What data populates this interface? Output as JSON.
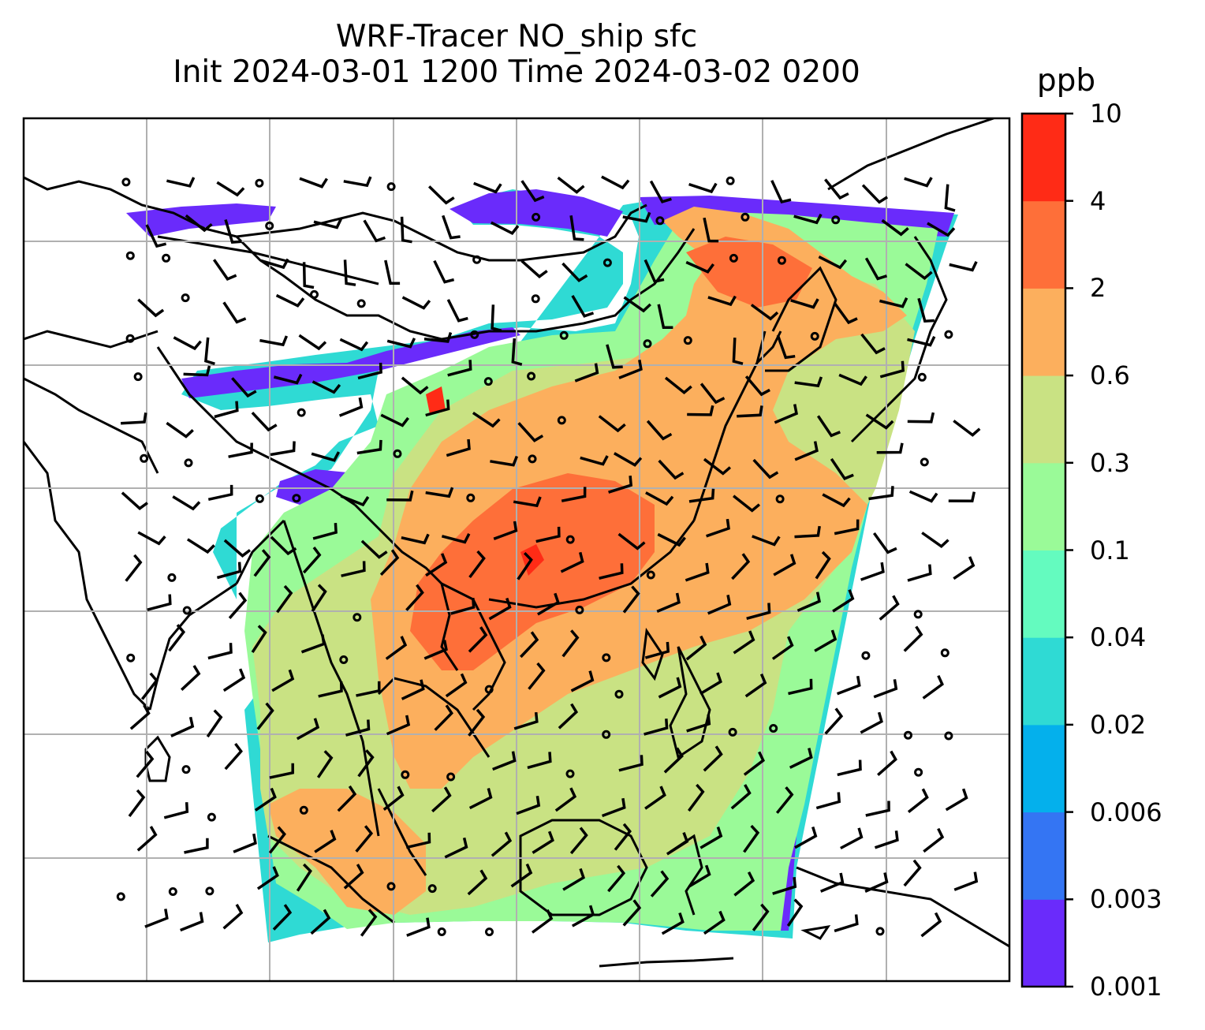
{
  "title": {
    "line1": "WRF-Tracer NO_ship sfc",
    "line2": "Init 2024-03-01 1200 Time 2024-03-02 0200"
  },
  "colorbar": {
    "unit": "ppb",
    "levels": [
      "0.001",
      "0.003",
      "0.006",
      "0.02",
      "0.04",
      "0.1",
      "0.3",
      "0.6",
      "2",
      "4",
      "10"
    ],
    "colors": [
      "#6a2bfb",
      "#3475f3",
      "#04b0ec",
      "#2fdad4",
      "#64fbbf",
      "#9afa98",
      "#c9e283",
      "#fcaf5d",
      "#fe6f39",
      "#ff2b16"
    ]
  },
  "map": {
    "gridlines": true,
    "field": "NO_ship",
    "level": "sfc",
    "wind_barbs": true
  }
}
